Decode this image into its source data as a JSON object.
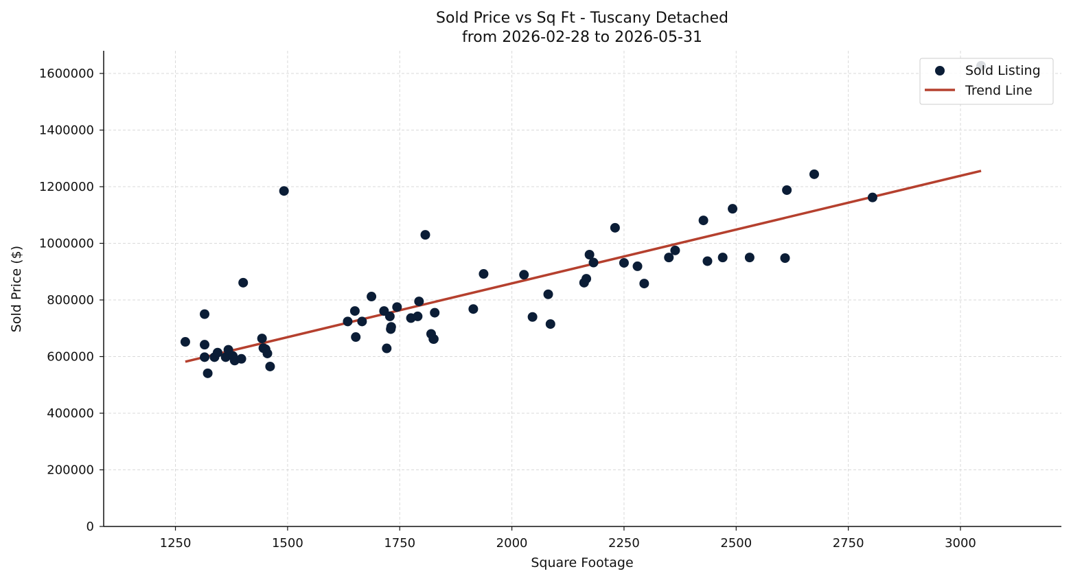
{
  "chart_data": {
    "type": "scatter",
    "title": "Sold Price vs Sq Ft - Tuscany Detached",
    "subtitle": "from 2026-02-28 to 2026-05-31",
    "xlabel": "Square Footage",
    "ylabel": "Sold Price ($)",
    "xlim": [
      1090,
      3225
    ],
    "ylim": [
      0,
      1680000
    ],
    "xticks": [
      1250,
      1500,
      1750,
      2000,
      2250,
      2500,
      2750,
      3000
    ],
    "yticks": [
      0,
      200000,
      400000,
      600000,
      800000,
      1000000,
      1200000,
      1400000,
      1600000
    ],
    "grid": true,
    "legend_position": "top-right",
    "colors": {
      "points": "#0b1d36",
      "trend": "#b5402e",
      "grid": "#d9d9d9",
      "axis": "#111111"
    },
    "series": [
      {
        "name": "Sold Listing",
        "kind": "scatter",
        "points": [
          [
            1272,
            652000
          ],
          [
            1315,
            750000
          ],
          [
            1315,
            642000
          ],
          [
            1315,
            598000
          ],
          [
            1322,
            541000
          ],
          [
            1337,
            598000
          ],
          [
            1344,
            614000
          ],
          [
            1362,
            598000
          ],
          [
            1368,
            624000
          ],
          [
            1378,
            602000
          ],
          [
            1382,
            586000
          ],
          [
            1397,
            592000
          ],
          [
            1401,
            861000
          ],
          [
            1443,
            664000
          ],
          [
            1446,
            630000
          ],
          [
            1451,
            626000
          ],
          [
            1455,
            611000
          ],
          [
            1461,
            565000
          ],
          [
            1492,
            1185000
          ],
          [
            1634,
            724000
          ],
          [
            1650,
            761000
          ],
          [
            1652,
            669000
          ],
          [
            1666,
            724000
          ],
          [
            1687,
            812000
          ],
          [
            1715,
            761000
          ],
          [
            1721,
            629000
          ],
          [
            1728,
            742000
          ],
          [
            1730,
            697000
          ],
          [
            1731,
            705000
          ],
          [
            1744,
            775000
          ],
          [
            1775,
            736000
          ],
          [
            1790,
            742000
          ],
          [
            1793,
            795000
          ],
          [
            1807,
            1030000
          ],
          [
            1820,
            680000
          ],
          [
            1825,
            662000
          ],
          [
            1826,
            662000
          ],
          [
            1828,
            755000
          ],
          [
            1914,
            768000
          ],
          [
            1937,
            892000
          ],
          [
            2027,
            889000
          ],
          [
            2046,
            740000
          ],
          [
            2081,
            820000
          ],
          [
            2086,
            715000
          ],
          [
            2161,
            861000
          ],
          [
            2166,
            875000
          ],
          [
            2173,
            960000
          ],
          [
            2182,
            932000
          ],
          [
            2230,
            1055000
          ],
          [
            2250,
            931000
          ],
          [
            2280,
            919000
          ],
          [
            2295,
            858000
          ],
          [
            2350,
            950000
          ],
          [
            2364,
            975000
          ],
          [
            2427,
            1081000
          ],
          [
            2436,
            937000
          ],
          [
            2470,
            950000
          ],
          [
            2492,
            1122000
          ],
          [
            2530,
            950000
          ],
          [
            2609,
            948000
          ],
          [
            2613,
            1188000
          ],
          [
            2674,
            1244000
          ],
          [
            2804,
            1162000
          ],
          [
            3046,
            1627000
          ]
        ]
      },
      {
        "name": "Trend Line",
        "kind": "line",
        "points": [
          [
            1272,
            582000
          ],
          [
            3046,
            1256000
          ]
        ]
      }
    ]
  }
}
